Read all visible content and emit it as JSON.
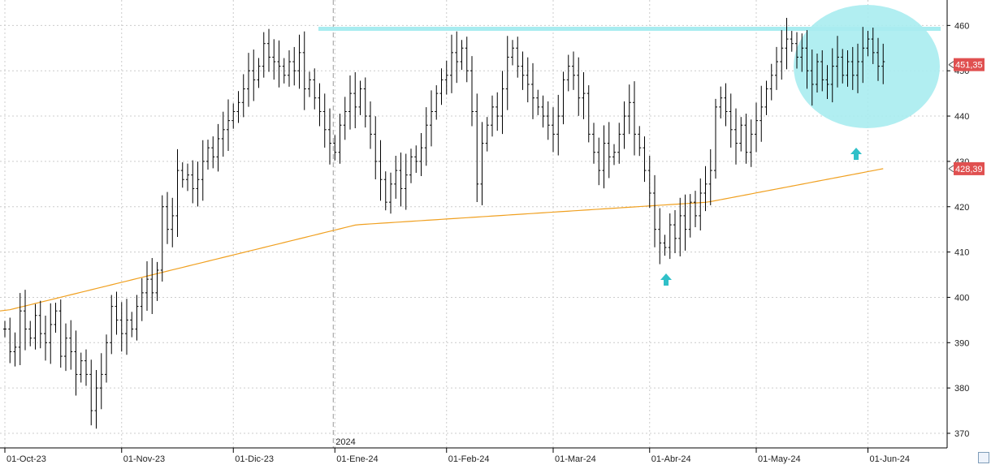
{
  "chart_data": {
    "type": "ohlc",
    "year_marker": "2024",
    "ylim": [
      366,
      464
    ],
    "yticks": [
      370,
      380,
      390,
      400,
      410,
      420,
      430,
      440,
      450,
      460
    ],
    "grid": true,
    "x_labels": [
      {
        "label": "01-Oct-23",
        "index": 0
      },
      {
        "label": "01-Nov-23",
        "index": 23
      },
      {
        "label": "01-Dic-23",
        "index": 45
      },
      {
        "label": "01-Ene-24",
        "index": 65
      },
      {
        "label": "01-Feb-24",
        "index": 87
      },
      {
        "label": "01-Mar-24",
        "index": 108
      },
      {
        "label": "01-Abr-24",
        "index": 127
      },
      {
        "label": "01-May-24",
        "index": 148
      },
      {
        "label": "01-Jun-24",
        "index": 170
      }
    ],
    "last_price": "451,35",
    "last_price_value": 451.35,
    "moving_average_label": "428,39",
    "moving_average_value": 428.39,
    "colors": {
      "bars": "#000000",
      "moving_average": "#f0a020",
      "annotations": "#a8ecf0",
      "price_tag": "#e05050",
      "grid": "#cccccc"
    },
    "ohlc_closes": [
      393,
      388,
      389,
      397,
      393,
      391,
      396,
      392,
      390,
      394,
      397,
      387,
      391,
      388,
      383,
      386,
      383,
      375,
      380,
      383,
      390,
      398,
      395,
      392,
      395,
      393,
      398,
      401,
      404,
      401,
      406,
      420,
      415,
      418,
      428,
      426,
      427,
      424,
      426,
      430,
      433,
      431,
      435,
      437,
      439,
      441,
      443,
      446,
      450,
      448,
      451,
      456,
      453,
      452,
      451,
      449,
      452,
      450,
      454,
      446,
      448,
      444,
      441,
      437,
      434,
      432,
      438,
      441,
      445,
      442,
      446,
      440,
      436,
      430,
      426,
      421,
      425,
      428,
      424,
      427,
      431,
      430,
      433,
      438,
      441,
      445,
      448,
      449,
      454,
      452,
      455,
      450,
      441,
      425,
      434,
      438,
      442,
      440,
      446,
      453,
      455,
      451,
      449,
      447,
      444,
      442,
      440,
      438,
      436,
      440,
      448,
      451,
      449,
      444,
      445,
      436,
      432,
      428,
      434,
      431,
      432,
      436,
      440,
      443,
      436,
      433,
      428,
      423,
      415,
      412,
      411,
      416,
      413,
      418,
      415,
      421,
      418,
      423,
      425,
      428,
      442,
      444,
      441,
      437,
      434,
      438,
      432,
      436,
      439,
      442,
      446,
      449,
      452,
      455,
      457,
      456,
      453,
      455,
      450,
      447,
      452,
      448,
      447,
      451,
      453,
      449,
      452,
      449,
      452,
      455,
      457,
      454,
      451,
      452
    ]
  }
}
